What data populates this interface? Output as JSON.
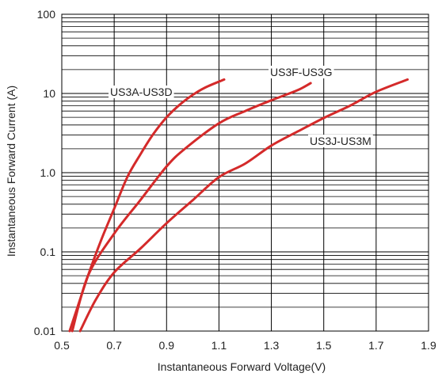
{
  "chart_data": {
    "type": "line",
    "title": "",
    "xlabel": "Instantaneous Forward Voltage(V)",
    "ylabel": "Instantaneous Forward Current (A)",
    "xlim": [
      0.5,
      1.9
    ],
    "ylim": [
      0.01,
      100
    ],
    "yscale": "log",
    "grid": true,
    "legend": "inline labels",
    "x_ticks": [
      "0.5",
      "0.7",
      "0.9",
      "1.1",
      "1.3",
      "1.5",
      "1.7",
      "1.9"
    ],
    "y_ticks": [
      "0.01",
      "0.1",
      "1.0",
      "10",
      "100"
    ],
    "line_color": "#d42a2a",
    "series": [
      {
        "name": "US3A-US3D",
        "x": [
          0.53,
          0.6,
          0.65,
          0.7,
          0.75,
          0.8,
          0.85,
          0.9,
          0.95,
          1.0,
          1.05,
          1.12
        ],
        "y": [
          0.01,
          0.05,
          0.14,
          0.35,
          0.88,
          1.7,
          3.1,
          5.0,
          7.2,
          9.6,
          12.0,
          15.0
        ]
      },
      {
        "name": "US3F-US3G",
        "x": [
          0.54,
          0.6,
          0.7,
          0.8,
          0.9,
          0.97,
          1.1,
          1.2,
          1.3,
          1.4,
          1.45
        ],
        "y": [
          0.01,
          0.05,
          0.17,
          0.45,
          1.2,
          2.0,
          4.2,
          6.0,
          8.2,
          11.0,
          13.5
        ]
      },
      {
        "name": "US3J-US3M",
        "x": [
          0.57,
          0.63,
          0.7,
          0.8,
          0.9,
          1.0,
          1.1,
          1.2,
          1.3,
          1.4,
          1.5,
          1.6,
          1.7,
          1.82
        ],
        "y": [
          0.01,
          0.025,
          0.055,
          0.11,
          0.23,
          0.45,
          0.88,
          1.3,
          2.2,
          3.3,
          4.9,
          7.0,
          10.5,
          15.0
        ]
      }
    ]
  }
}
